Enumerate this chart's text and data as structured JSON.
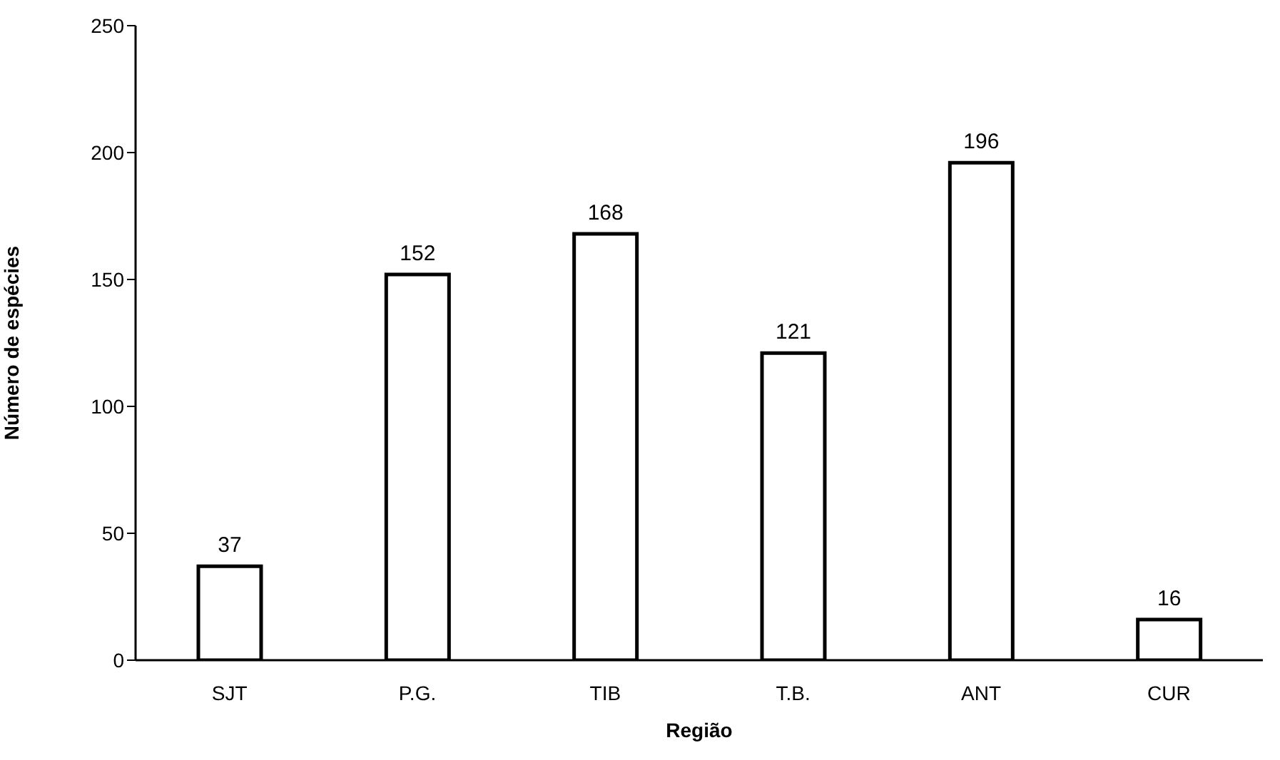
{
  "chart_data": {
    "type": "bar",
    "xlabel": "Região",
    "ylabel": "Número de espécies",
    "categories": [
      "SJT",
      "P.G.",
      "TIB",
      "T.B.",
      "ANT",
      "CUR"
    ],
    "series": [
      {
        "color": "#ffffff",
        "values": [
          37,
          152,
          168,
          121,
          196,
          16
        ]
      }
    ],
    "ylim": [
      0,
      250
    ],
    "yticks": [
      0,
      50,
      100,
      150,
      200,
      250
    ],
    "data_labels": true,
    "grid": false,
    "legend": false
  }
}
